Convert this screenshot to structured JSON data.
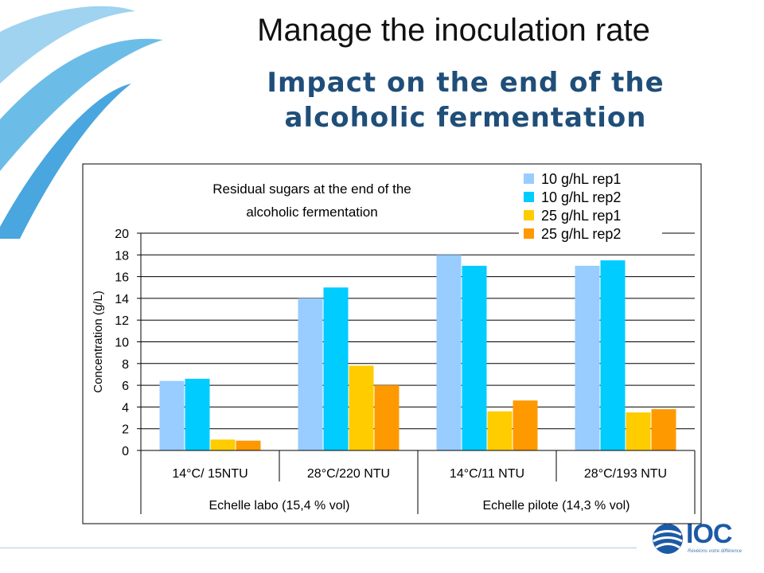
{
  "slide": {
    "title": "Manage the inoculation rate",
    "subtitle": "Impact on the end of the alcoholic fermentation",
    "logo_text": "IOC",
    "logo_tagline": "Révélons votre différence"
  },
  "colors": {
    "title": "#111111",
    "subtitle": "#1f4e79",
    "swoosh_light": "#6bbde8",
    "swoosh_dark": "#4aa6de",
    "logo": "#1c5aa6"
  },
  "chart_data": {
    "type": "bar",
    "title": "Residual sugars at the end of the alcoholic fermentation",
    "title_lines": [
      "Residual sugars at the end of the",
      "alcoholic fermentation"
    ],
    "ylabel": "Concentration (g/L)",
    "xlabel": "",
    "ylim": [
      0,
      20
    ],
    "y_ticks": [
      "0",
      "2",
      "4",
      "6",
      "8",
      "10",
      "12",
      "14",
      "16",
      "18",
      "20"
    ],
    "categories": [
      "14°C/ 15NTU",
      "28°C/220 NTU",
      "14°C/11 NTU",
      "28°C/193 NTU"
    ],
    "groups": [
      {
        "label": "Echelle labo (15,4 % vol)",
        "span": 2
      },
      {
        "label": "Echelle pilote (14,3 % vol)",
        "span": 2
      }
    ],
    "series": [
      {
        "name": "10 g/hL rep1",
        "color": "#99ccff",
        "values": [
          6.4,
          14.0,
          18.0,
          17.0
        ]
      },
      {
        "name": "10 g/hL rep2",
        "color": "#00ccff",
        "values": [
          6.6,
          15.0,
          17.0,
          17.5
        ]
      },
      {
        "name": "25 g/hL rep1",
        "color": "#ffcc00",
        "values": [
          1.0,
          7.8,
          3.6,
          3.5
        ]
      },
      {
        "name": "25 g/hL rep2",
        "color": "#ff9900",
        "values": [
          0.9,
          6.0,
          4.6,
          3.8
        ]
      }
    ],
    "legend_position": "top-right",
    "grid": true
  }
}
